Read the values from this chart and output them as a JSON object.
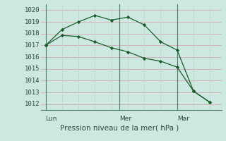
{
  "title": "Pression niveau de la mer( hPa )",
  "bg_color": "#cce8e0",
  "grid_color_h": "#d8b0b8",
  "grid_color_v": "#c8d8d0",
  "line_color": "#1a5c2a",
  "ylim": [
    1011.5,
    1020.5
  ],
  "y_ticks": [
    1012,
    1013,
    1014,
    1015,
    1016,
    1017,
    1018,
    1019,
    1020
  ],
  "line1_x": [
    0,
    1,
    2,
    3,
    4,
    5,
    6,
    7,
    8,
    9,
    10
  ],
  "line1_y": [
    1017.0,
    1018.35,
    1019.0,
    1019.55,
    1019.15,
    1019.4,
    1018.75,
    1017.3,
    1016.6,
    1013.1,
    1012.15
  ],
  "line2_x": [
    0,
    1,
    2,
    3,
    4,
    5,
    6,
    7,
    8,
    9,
    10
  ],
  "line2_y": [
    1017.0,
    1017.85,
    1017.75,
    1017.3,
    1016.8,
    1016.45,
    1015.9,
    1015.65,
    1015.15,
    1013.1,
    1012.15
  ],
  "vline_positions": [
    0,
    4.5,
    8.0
  ],
  "vline_labels": [
    "Lun",
    "Mer",
    "Mar"
  ],
  "xlim": [
    -0.3,
    10.7
  ],
  "tick_fontsize": 6.5,
  "label_fontsize": 7.5
}
